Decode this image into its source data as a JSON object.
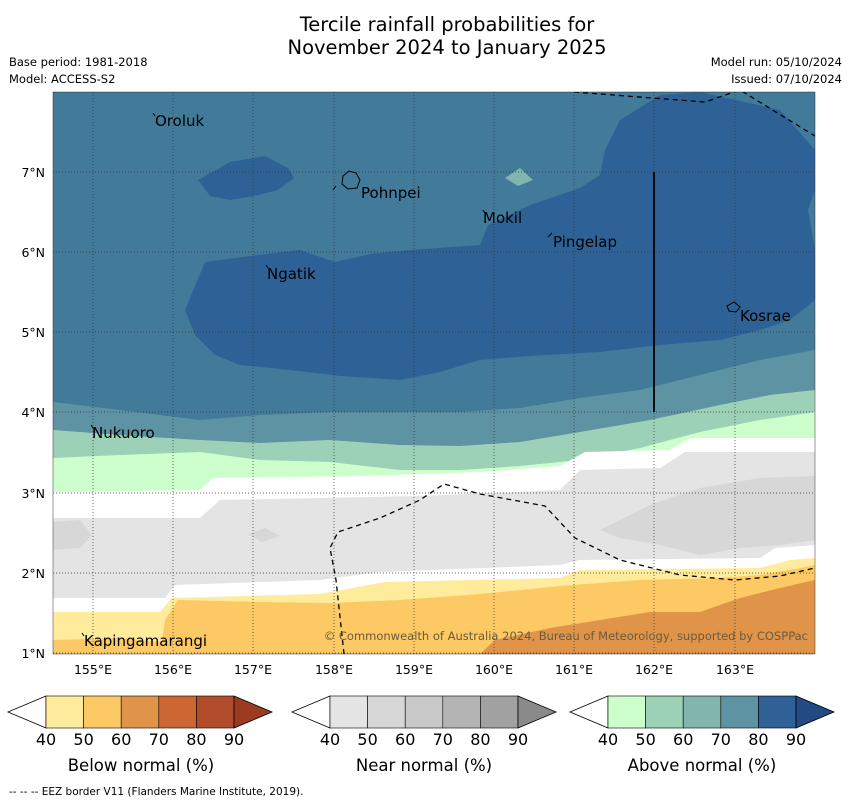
{
  "title_line1": "Tercile rainfall probabilities for",
  "title_line2": "November 2024 to January 2025",
  "meta_left": {
    "base_period": "Base period: 1981-2018",
    "model": "Model: ACCESS-S2"
  },
  "meta_right": {
    "model_run": "Model run: 05/10/2024",
    "issued": "Issued: 07/10/2024"
  },
  "map": {
    "lon_ticks": [
      "155°E",
      "156°E",
      "157°E",
      "158°E",
      "159°E",
      "160°E",
      "161°E",
      "162°E",
      "163°E"
    ],
    "lat_ticks": [
      "7°N",
      "6°N",
      "5°N",
      "4°N",
      "3°N",
      "2°N",
      "1°N"
    ],
    "places": [
      "Oroluk",
      "Pohnpei",
      "Mokil",
      "Pingelap",
      "Ngatik",
      "Kosrae",
      "Nukuoro",
      "Kapingamarangi"
    ],
    "copyright": "© Commonwealth of Australia 2024, Bureau of Meteorology, supported by COSPPac"
  },
  "colorbars": [
    {
      "label": "Below normal (%)",
      "ticks": [
        "40",
        "50",
        "60",
        "70",
        "80",
        "90"
      ],
      "colors": [
        "#ffeb9c",
        "#fdc964",
        "#e0944a",
        "#cc6633",
        "#b14d2a",
        "#9b3b22"
      ]
    },
    {
      "label": "Near normal (%)",
      "ticks": [
        "40",
        "50",
        "60",
        "70",
        "80",
        "90"
      ],
      "colors": [
        "#e4e4e4",
        "#d7d7d7",
        "#c9c9c9",
        "#b4b4b4",
        "#a1a1a1",
        "#8a8a8a"
      ]
    },
    {
      "label": "Above normal (%)",
      "ticks": [
        "40",
        "50",
        "60",
        "70",
        "80",
        "90"
      ],
      "colors": [
        "#ccffcc",
        "#9dd1b7",
        "#82b5ad",
        "#5d93a3",
        "#2f6196",
        "#234a82"
      ]
    }
  ],
  "footnote": "-- -- -- EEZ border V11 (Flanders Marine Institute, 2019)."
}
